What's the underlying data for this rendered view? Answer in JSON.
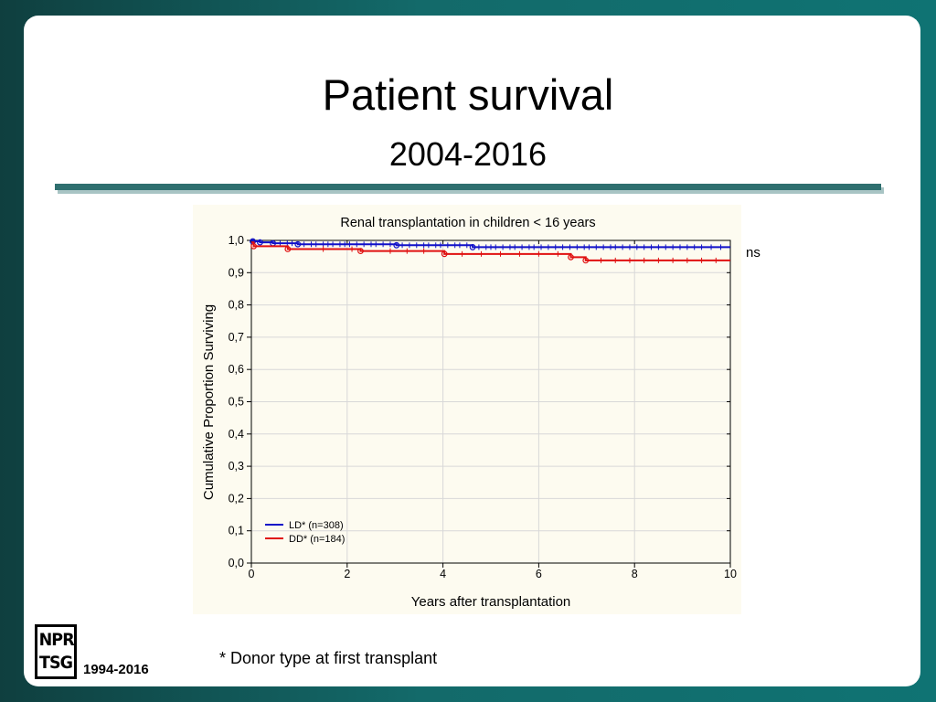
{
  "slide": {
    "title": "Patient survival",
    "subtitle": "2004-2016",
    "side_label": "ns",
    "footnote": "* Donor type at first transplant",
    "logo_text": "NPR\nTSG",
    "logo_years": "1994-2016"
  },
  "colors": {
    "background": "#136a6a",
    "rule": "#2f6f6f",
    "plot_background": "#fdfbf0",
    "ld": "#1010c8",
    "dd": "#e01010"
  },
  "chart_data": {
    "type": "line",
    "title": "Renal transplantation in children < 16 years",
    "xlabel": "Years after transplantation",
    "ylabel": "Cumulative Proportion Surviving",
    "xlim": [
      0,
      10
    ],
    "ylim": [
      0,
      1
    ],
    "x_ticks": [
      0,
      2,
      4,
      6,
      8,
      10
    ],
    "x_tick_labels": [
      "0",
      "2",
      "4",
      "6",
      "8",
      "10"
    ],
    "y_ticks": [
      0,
      0.1,
      0.2,
      0.3,
      0.4,
      0.5,
      0.6,
      0.7,
      0.8,
      0.9,
      1.0
    ],
    "y_tick_labels": [
      "0,0",
      "0,1",
      "0,2",
      "0,3",
      "0,4",
      "0,5",
      "0,6",
      "0,7",
      "0,8",
      "0,9",
      "1,0"
    ],
    "grid": true,
    "legend_position": "bottom-left",
    "series": [
      {
        "name": "LD* (n=308)",
        "color": "#1010c8",
        "steps": [
          [
            0,
            1.0
          ],
          [
            0.03,
            0.997
          ],
          [
            0.18,
            0.994
          ],
          [
            0.45,
            0.991
          ],
          [
            0.97,
            0.988
          ],
          [
            3.03,
            0.985
          ],
          [
            4.62,
            0.979
          ],
          [
            10,
            0.979
          ]
        ],
        "events": [
          0.03,
          0.18,
          0.45,
          0.97,
          3.03,
          4.62
        ],
        "censored": [
          0.6,
          0.75,
          0.85,
          1.1,
          1.25,
          1.35,
          1.5,
          1.6,
          1.7,
          1.85,
          1.95,
          2.05,
          2.2,
          2.35,
          2.5,
          2.6,
          2.75,
          2.9,
          3.15,
          3.3,
          3.45,
          3.6,
          3.7,
          3.85,
          3.95,
          4.1,
          4.25,
          4.35,
          4.5,
          4.75,
          4.9,
          5.0,
          5.1,
          5.25,
          5.4,
          5.5,
          5.65,
          5.8,
          5.9,
          6.05,
          6.2,
          6.35,
          6.5,
          6.65,
          6.8,
          6.95,
          7.05,
          7.2,
          7.35,
          7.5,
          7.6,
          7.75,
          7.9,
          8.05,
          8.2,
          8.35,
          8.5,
          8.65,
          8.8,
          8.95,
          9.1,
          9.25,
          9.4,
          9.6,
          9.8
        ]
      },
      {
        "name": "DD* (n=184)",
        "color": "#e01010",
        "steps": [
          [
            0,
            0.994
          ],
          [
            0.05,
            0.982
          ],
          [
            0.76,
            0.973
          ],
          [
            2.28,
            0.967
          ],
          [
            4.03,
            0.958
          ],
          [
            6.67,
            0.948
          ],
          [
            6.98,
            0.938
          ],
          [
            10,
            0.938
          ]
        ],
        "events": [
          0.05,
          0.76,
          2.28,
          4.03,
          6.67,
          6.98
        ],
        "censored": [
          1.5,
          2.1,
          2.9,
          3.25,
          3.6,
          4.4,
          4.8,
          5.2,
          5.6,
          6.0,
          6.4,
          7.3,
          7.6,
          7.9,
          8.2,
          8.5,
          8.8,
          9.1,
          9.4,
          9.7
        ]
      }
    ]
  }
}
